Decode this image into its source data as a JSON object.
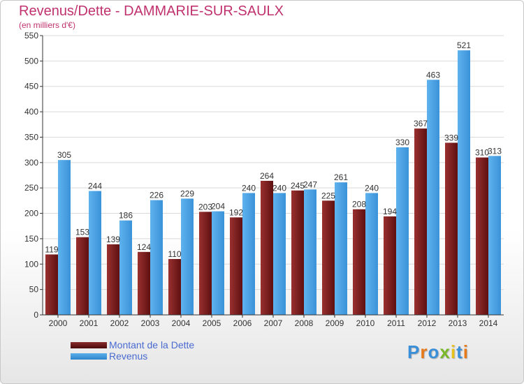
{
  "title": "Revenus/Dette - DAMMARIE-SUR-SAULX",
  "subtitle": "(en milliers d'€)",
  "logo": {
    "text": "Proxiti"
  },
  "colors": {
    "title": "#c0326e",
    "dette": "#7a2020",
    "revenus": "#4aa3e8",
    "legend_text": "#4a6ad0",
    "grid": "#d9d9d9"
  },
  "chart_data": {
    "type": "bar",
    "title": "Revenus/Dette - DAMMARIE-SUR-SAULX",
    "ylabel": "(en milliers d'€)",
    "xlabel": "",
    "ylim": [
      0,
      550
    ],
    "yticks": [
      0,
      50,
      100,
      150,
      200,
      250,
      300,
      350,
      400,
      450,
      500,
      550
    ],
    "grid": true,
    "legend_position": "bottom-left",
    "categories": [
      "2000",
      "2001",
      "2002",
      "2003",
      "2004",
      "2005",
      "2006",
      "2007",
      "2008",
      "2009",
      "2010",
      "2011",
      "2012",
      "2013",
      "2014"
    ],
    "series": [
      {
        "name": "Montant de la Dette",
        "values": [
          119,
          153,
          139,
          124,
          110,
          203,
          192,
          264,
          245,
          225,
          208,
          194,
          367,
          339,
          310
        ]
      },
      {
        "name": "Revenus",
        "values": [
          305,
          244,
          186,
          226,
          229,
          204,
          240,
          240,
          247,
          261,
          240,
          330,
          463,
          521,
          313
        ]
      }
    ]
  }
}
